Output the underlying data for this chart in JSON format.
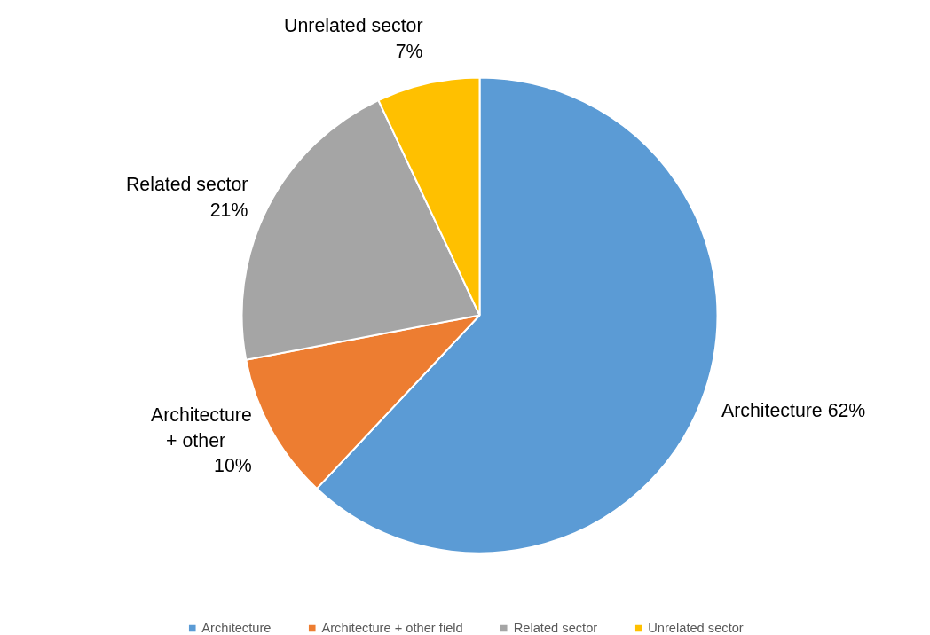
{
  "chart_data": {
    "type": "pie",
    "categories": [
      "Architecture",
      "Architecture + other field",
      "Related sector",
      "Unrelated sector"
    ],
    "values": [
      62,
      10,
      21,
      7
    ],
    "colors": [
      "#5b9bd5",
      "#ed7d31",
      "#a5a5a5",
      "#ffc000"
    ],
    "value_labels": [
      "Architecture 62%",
      "Architecture\n+      other\n10%",
      "Related sector\n21%",
      "Unrelated sector\n7%"
    ],
    "legend": "bottom"
  }
}
